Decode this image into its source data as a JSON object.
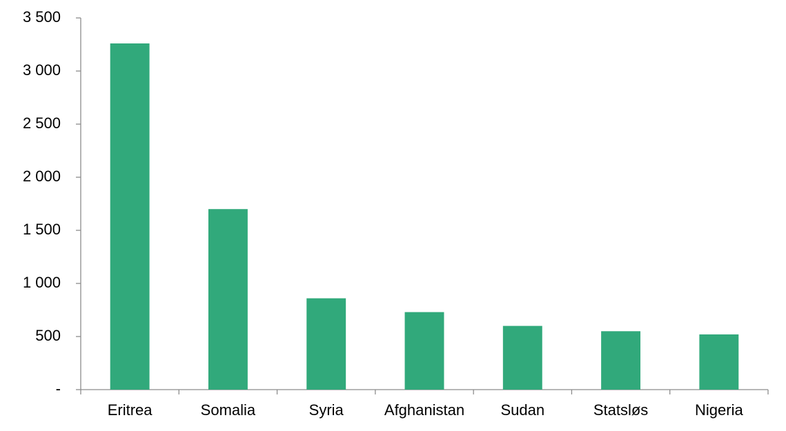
{
  "chart_data": {
    "type": "bar",
    "categories": [
      "Eritrea",
      "Somalia",
      "Syria",
      "Afghanistan",
      "Sudan",
      "Statsløs",
      "Nigeria"
    ],
    "values": [
      3260,
      1700,
      860,
      730,
      600,
      550,
      520
    ],
    "color": "#31a97b",
    "ylim": [
      0,
      3500
    ],
    "yticks": [
      {
        "value": 0,
        "label": "-"
      },
      500,
      {
        "value": 1000,
        "label": "1 000"
      },
      {
        "value": 1500,
        "label": "1 500"
      },
      {
        "value": 2000,
        "label": "2 000"
      },
      {
        "value": 2500,
        "label": "2 500"
      },
      {
        "value": 3000,
        "label": "3 000"
      },
      {
        "value": 3500,
        "label": "3 500"
      }
    ],
    "grid": false
  }
}
